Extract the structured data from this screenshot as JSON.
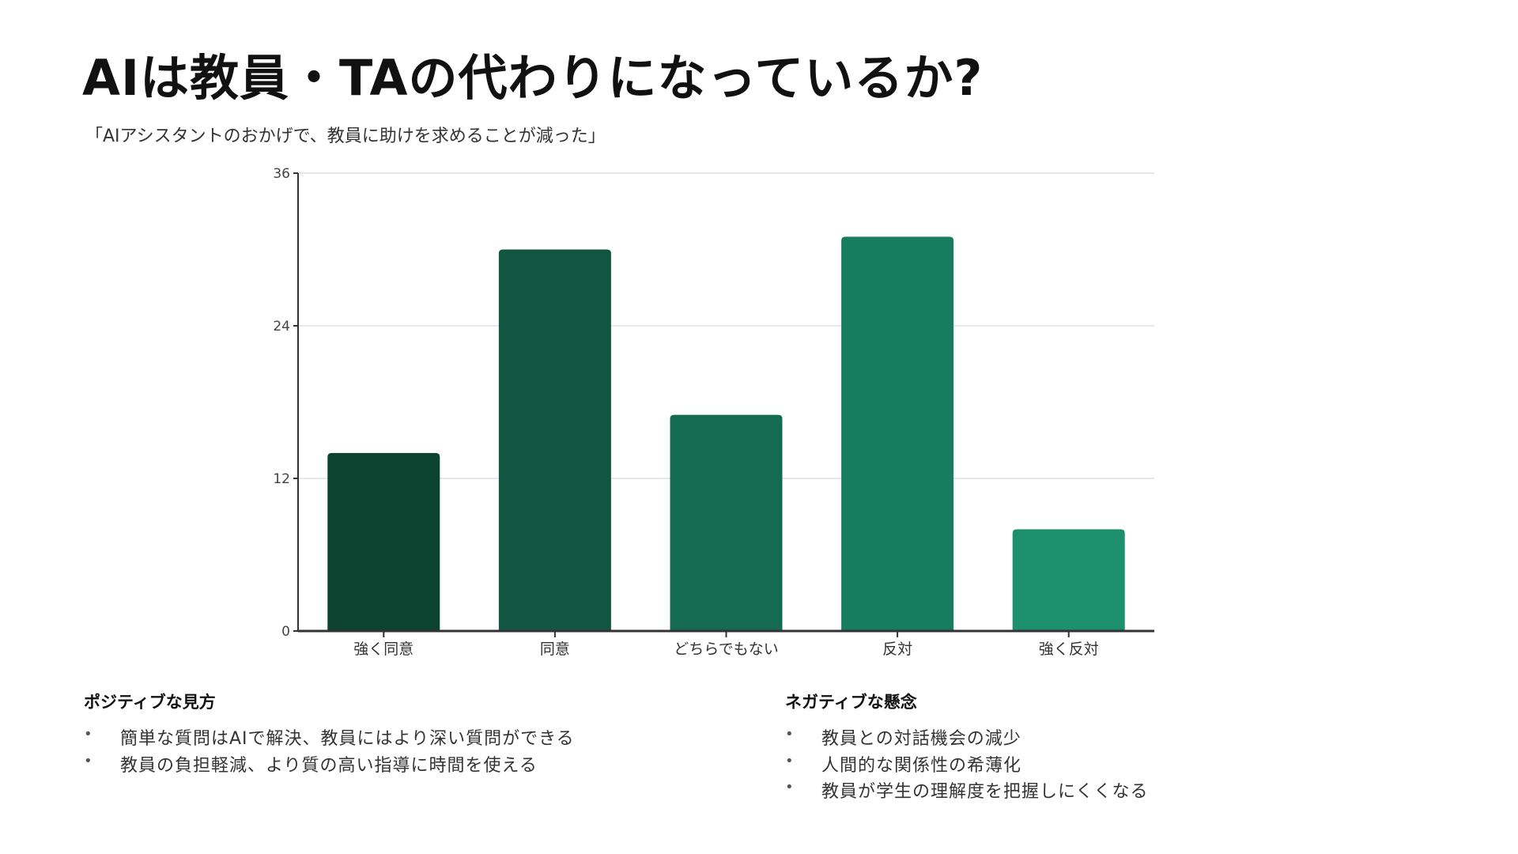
{
  "title": "AIは教員・TAの代わりになっているか?",
  "subtitle": "「AIアシスタントのおかげで、教員に助けを求めることが減った」",
  "chart_data": {
    "type": "bar",
    "categories": [
      "強く同意",
      "同意",
      "どちらでもない",
      "反対",
      "強く反対"
    ],
    "values": [
      14,
      30,
      17,
      31,
      8
    ],
    "colors": [
      "#0c4230",
      "#115640",
      "#146b50",
      "#177d5e",
      "#1c906b"
    ],
    "ylim": [
      0,
      36
    ],
    "yticks": [
      0,
      12,
      24,
      36
    ],
    "grid": true,
    "title": "",
    "xlabel": "",
    "ylabel": ""
  },
  "positive": {
    "heading": "ポジティブな見方",
    "items": [
      "簡単な質問はAIで解決、教員にはより深い質問ができる",
      "教員の負担軽減、より質の高い指導に時間を使える"
    ]
  },
  "negative": {
    "heading": "ネガティブな懸念",
    "items": [
      "教員との対話機会の減少",
      "人間的な関係性の希薄化",
      "教員が学生の理解度を把握しにくくなる"
    ]
  }
}
